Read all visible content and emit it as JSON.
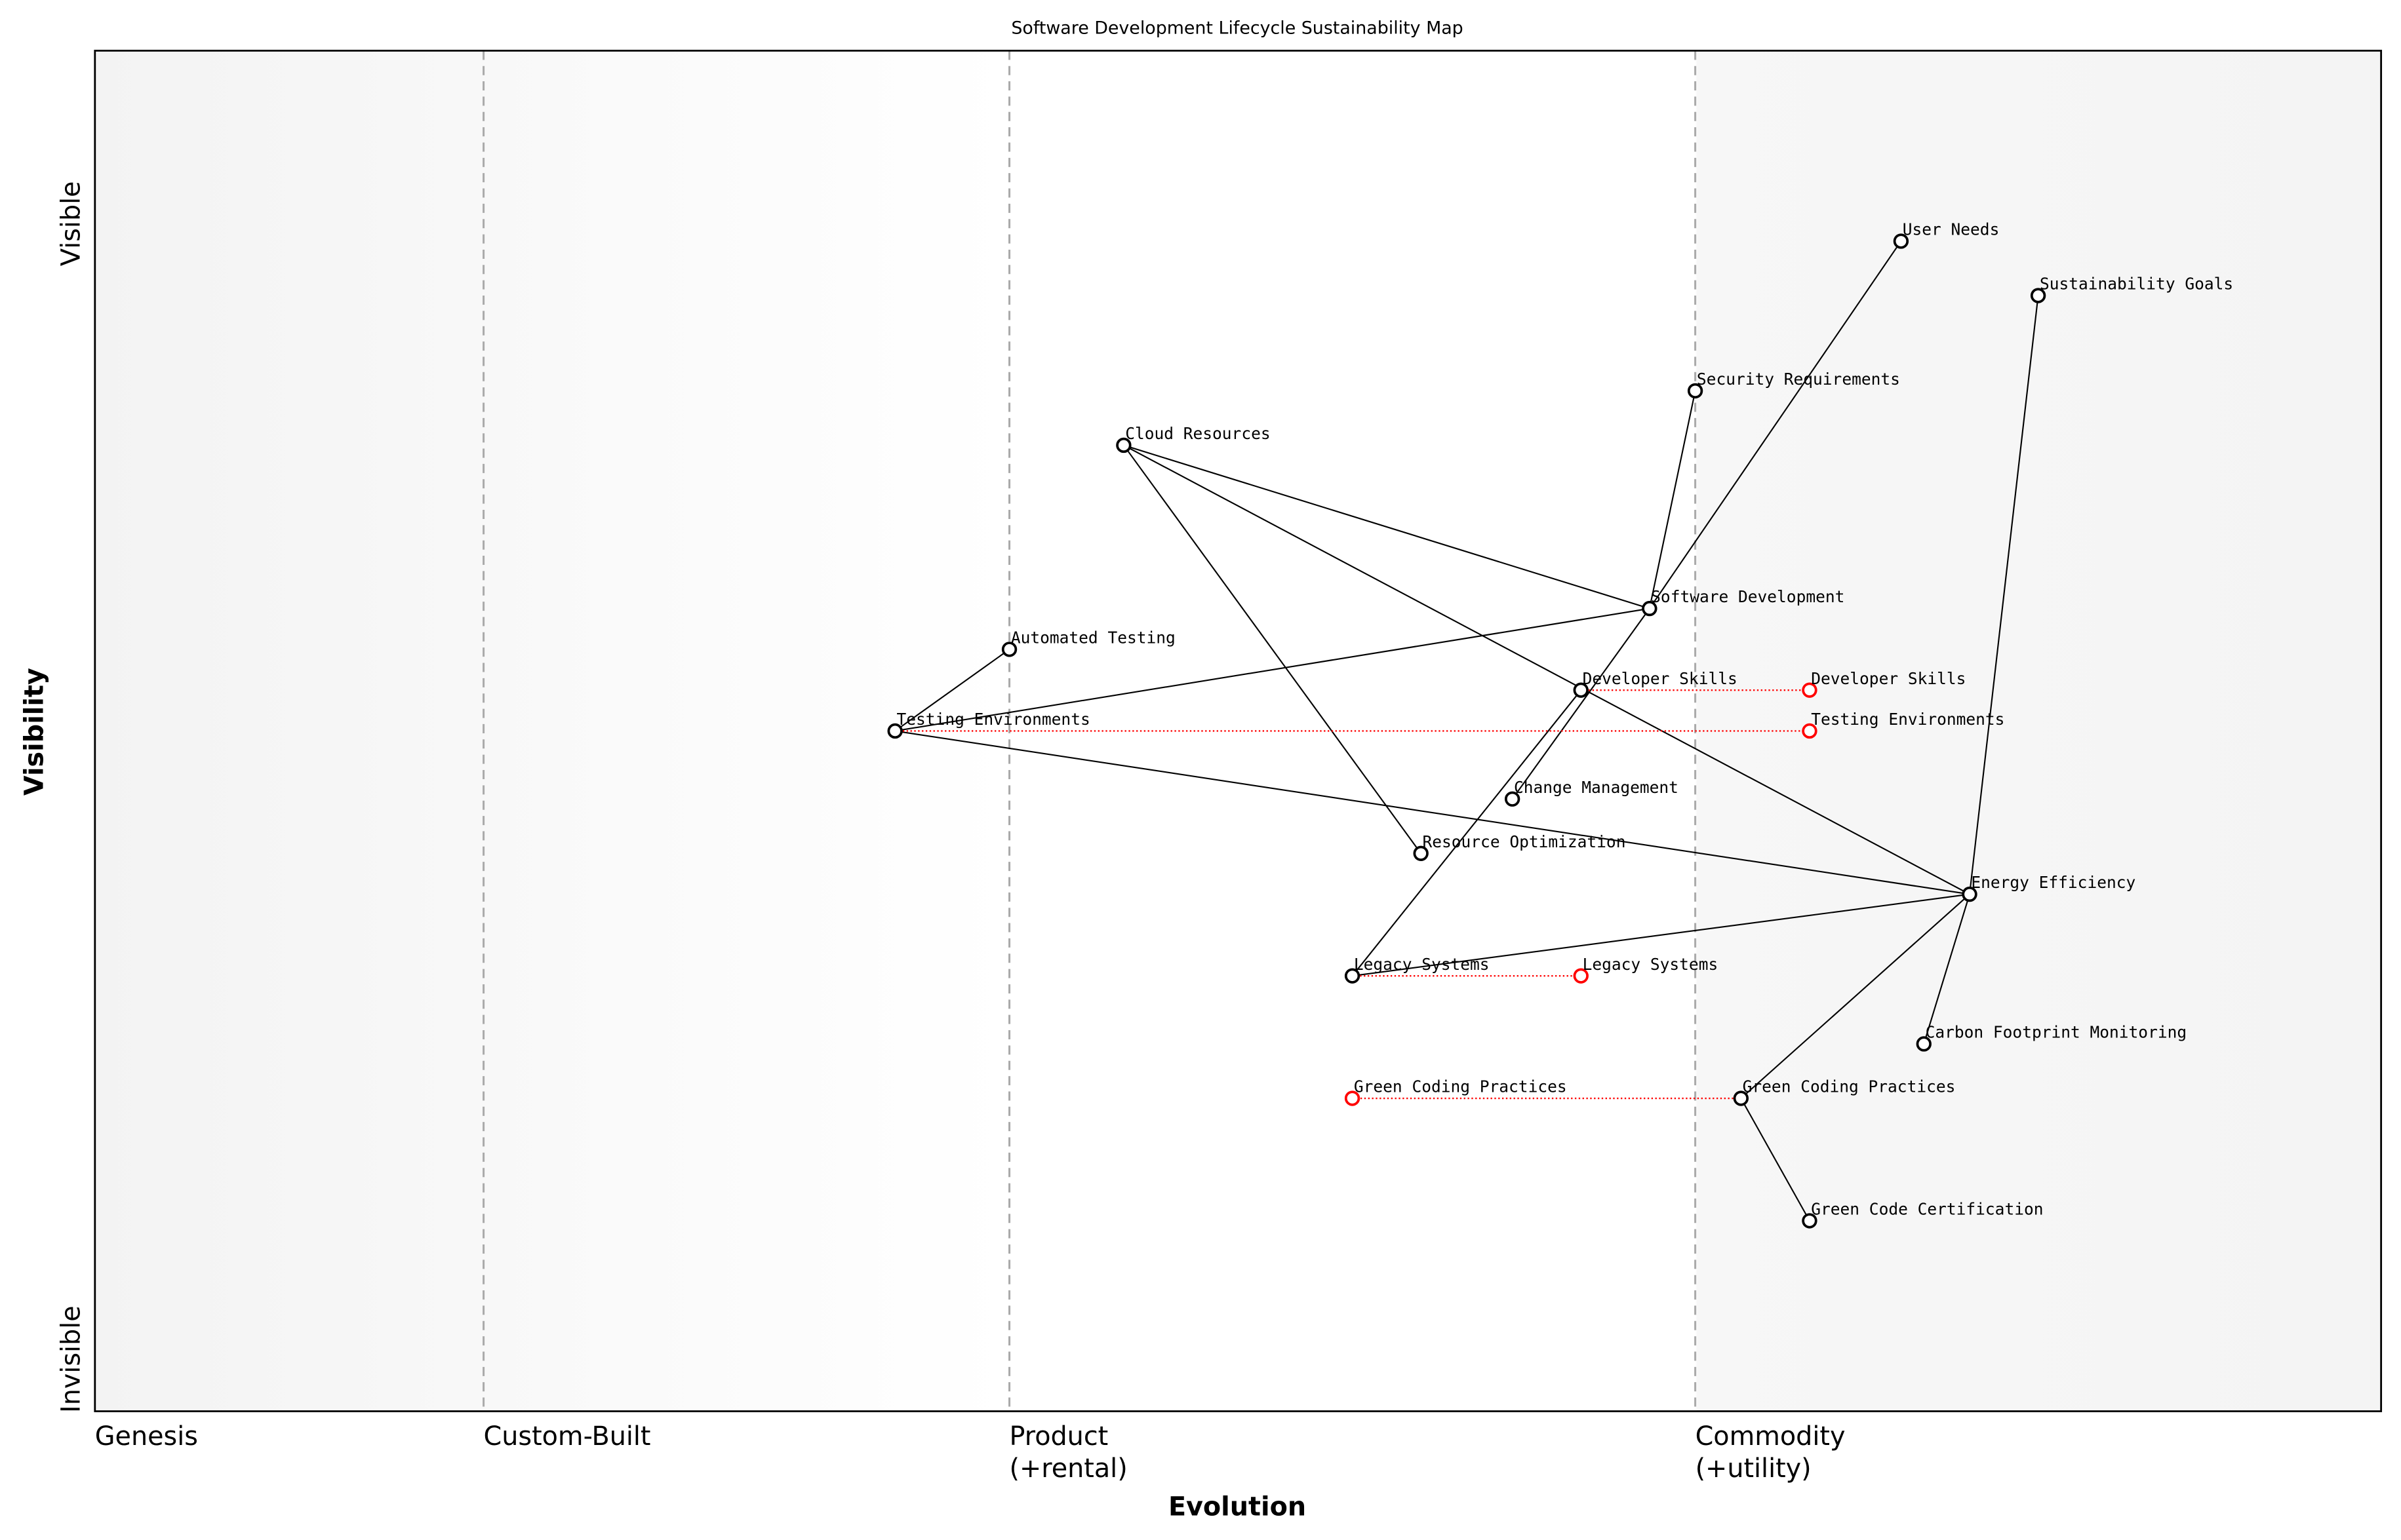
{
  "title": "Software Development Lifecycle Sustainability Map",
  "x_label": "Evolution",
  "y_label": "Visibility",
  "y_ticks": {
    "top": "Visible",
    "bottom": "Invisible"
  },
  "stages": [
    {
      "label": "Genesis",
      "x": 0.0
    },
    {
      "label": "Custom-Built",
      "x": 0.17
    },
    {
      "label": "Product\n(+rental)",
      "x": 0.4
    },
    {
      "label": "Commodity\n(+utility)",
      "x": 0.7
    }
  ],
  "colors": {
    "node": "#000000",
    "evolved": "#ff0000",
    "divider": "#aaaaaa"
  },
  "chart_data": {
    "type": "scatter",
    "title": "Software Development Lifecycle Sustainability Map",
    "xlabel": "Evolution",
    "ylabel": "Visibility",
    "xlim": [
      0,
      1
    ],
    "ylim": [
      0,
      1
    ],
    "components": [
      {
        "name": "User Needs",
        "x": 0.79,
        "y": 0.86
      },
      {
        "name": "Sustainability Goals",
        "x": 0.85,
        "y": 0.82
      },
      {
        "name": "Security Requirements",
        "x": 0.7,
        "y": 0.75
      },
      {
        "name": "Cloud Resources",
        "x": 0.45,
        "y": 0.71
      },
      {
        "name": "Software Development",
        "x": 0.68,
        "y": 0.59
      },
      {
        "name": "Automated Testing",
        "x": 0.4,
        "y": 0.56
      },
      {
        "name": "Developer Skills",
        "x": 0.65,
        "y": 0.53
      },
      {
        "name": "Testing Environments",
        "x": 0.35,
        "y": 0.5
      },
      {
        "name": "Change Management",
        "x": 0.62,
        "y": 0.45
      },
      {
        "name": "Resource Optimization",
        "x": 0.58,
        "y": 0.41
      },
      {
        "name": "Energy Efficiency",
        "x": 0.82,
        "y": 0.38
      },
      {
        "name": "Legacy Systems",
        "x": 0.55,
        "y": 0.32
      },
      {
        "name": "Carbon Footprint Monitoring",
        "x": 0.8,
        "y": 0.27
      },
      {
        "name": "Green Coding Practices",
        "x": 0.72,
        "y": 0.23
      },
      {
        "name": "Green Code Certification",
        "x": 0.75,
        "y": 0.14
      }
    ],
    "evolutions": [
      {
        "name": "Developer Skills",
        "to_x": 0.75
      },
      {
        "name": "Testing Environments",
        "to_x": 0.75
      },
      {
        "name": "Legacy Systems",
        "to_x": 0.65
      },
      {
        "name": "Green Coding Practices",
        "to_x": 0.55
      }
    ],
    "links": [
      [
        "User Needs",
        "Software Development"
      ],
      [
        "Sustainability Goals",
        "Energy Efficiency"
      ],
      [
        "Security Requirements",
        "Software Development"
      ],
      [
        "Cloud Resources",
        "Software Development"
      ],
      [
        "Cloud Resources",
        "Energy Efficiency"
      ],
      [
        "Cloud Resources",
        "Resource Optimization"
      ],
      [
        "Testing Environments",
        "Software Development"
      ],
      [
        "Testing Environments",
        "Automated Testing"
      ],
      [
        "Testing Environments",
        "Energy Efficiency"
      ],
      [
        "Software Development",
        "Change Management"
      ],
      [
        "Developer Skills",
        "Legacy Systems"
      ],
      [
        "Legacy Systems",
        "Energy Efficiency"
      ],
      [
        "Energy Efficiency",
        "Carbon Footprint Monitoring"
      ],
      [
        "Energy Efficiency",
        "Green Coding Practices"
      ],
      [
        "Green Coding Practices",
        "Green Code Certification"
      ]
    ]
  }
}
